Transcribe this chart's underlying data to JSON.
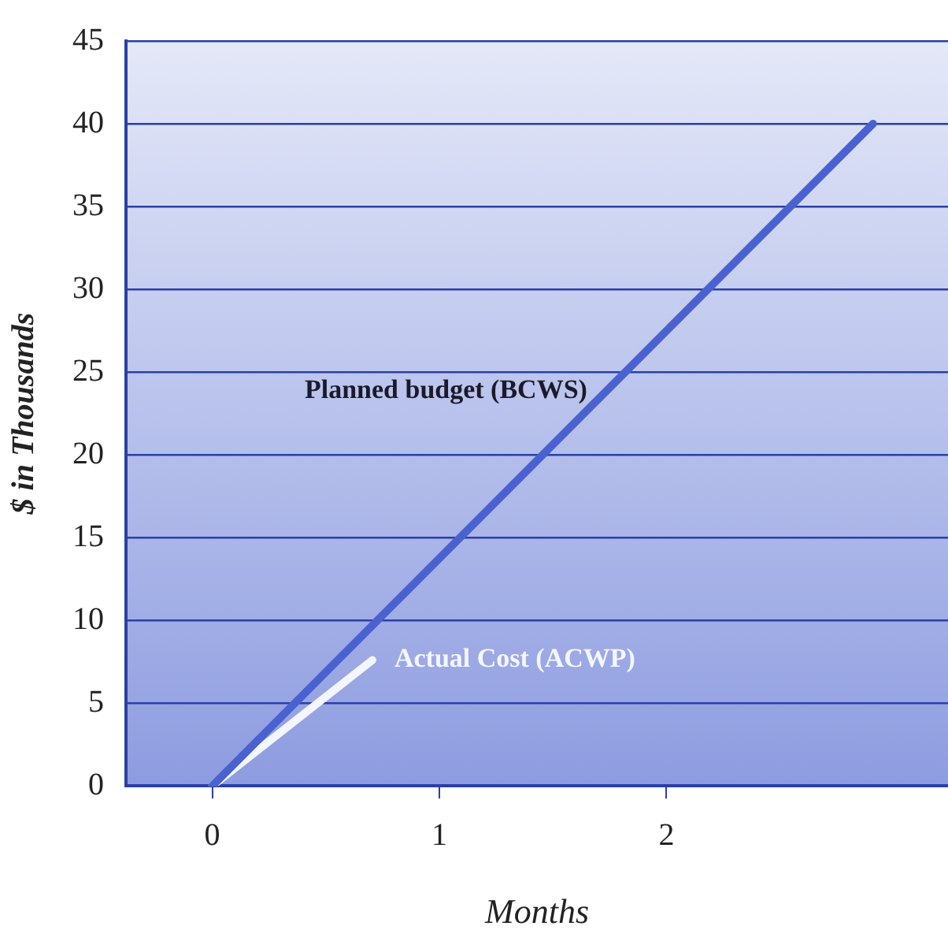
{
  "chart_data": {
    "type": "line",
    "xlabel": "Months",
    "ylabel": "$ in Thousands",
    "xlim": [
      -0.38,
      3.24
    ],
    "xticks": [
      0,
      1,
      2
    ],
    "ylim": [
      0,
      45
    ],
    "yticks": [
      0,
      5,
      10,
      15,
      20,
      25,
      30,
      35,
      40,
      45
    ],
    "grid": "y",
    "legend": false,
    "marker": "none",
    "line_style": "solid",
    "series": [
      {
        "name": "Planned budget (BCWS)",
        "color": "#4a62d0",
        "x": [
          0,
          2.91
        ],
        "values": [
          0,
          40
        ]
      },
      {
        "name": "Actual Cost (ACWP)",
        "color": "#f4f6ff",
        "x": [
          0,
          0.705
        ],
        "values": [
          0,
          7.6
        ]
      }
    ]
  }
}
